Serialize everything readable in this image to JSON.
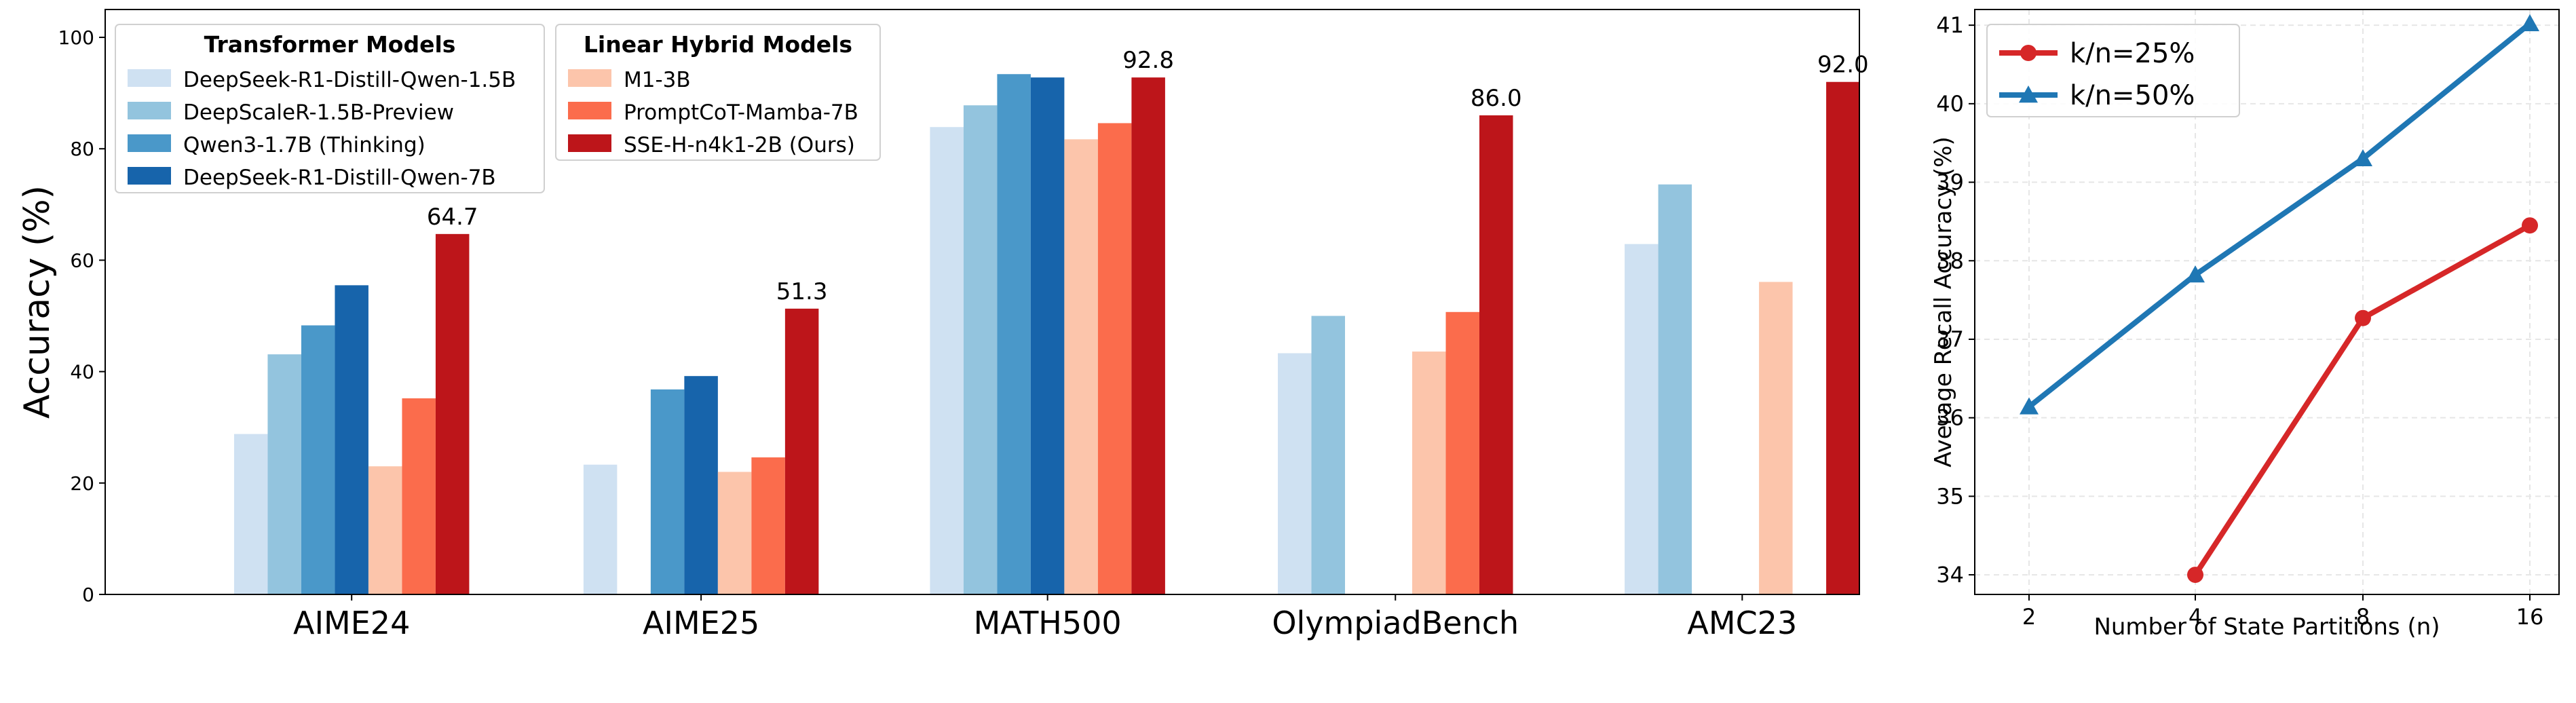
{
  "colors": {
    "deepseek_r1_qwen_1_5b": "#cfe1f2",
    "deepscaler": "#93c4de",
    "qwen3": "#4a98c9",
    "deepseek_r1_qwen_7b": "#1764ab",
    "m1": "#fcc5ab",
    "promptcot": "#fb6c4c",
    "sse": "#bd151a",
    "line_k25": "#d62728",
    "line_k50": "#1f77b4",
    "grid": "#e6e6e6"
  },
  "chart_data": [
    {
      "type": "bar",
      "xlabel": "",
      "ylabel": "Accuracy (%)",
      "ylim": [
        0,
        105
      ],
      "yticks": [
        "0",
        "20",
        "40",
        "60",
        "80",
        "100"
      ],
      "categories": [
        "AIME24",
        "AIME25",
        "MATH500",
        "OlympiadBench",
        "AMC23"
      ],
      "legend_groups": [
        {
          "title": "Transformer Models",
          "placement": "top-left",
          "entries": [
            "DeepSeek-R1-Distill-Qwen-1.5B",
            "DeepScaleR-1.5B-Preview",
            "Qwen3-1.7B (Thinking)",
            "DeepSeek-R1-Distill-Qwen-7B"
          ]
        },
        {
          "title": "Linear Hybrid Models",
          "placement": "top-left",
          "entries": [
            "M1-3B",
            "PromptCoT-Mamba-7B",
            "SSE-H-n4k1-2B (Ours)"
          ]
        }
      ],
      "series": [
        {
          "name": "DeepSeek-R1-Distill-Qwen-1.5B",
          "color": "#cfe1f2",
          "values": [
            28.8,
            23.3,
            83.9,
            43.3,
            62.9
          ]
        },
        {
          "name": "DeepScaleR-1.5B-Preview",
          "color": "#93c4de",
          "values": [
            43.1,
            null,
            87.8,
            50.0,
            73.6
          ]
        },
        {
          "name": "Qwen3-1.7B (Thinking)",
          "color": "#4a98c9",
          "values": [
            48.3,
            36.8,
            93.4,
            null,
            null
          ]
        },
        {
          "name": "DeepSeek-R1-Distill-Qwen-7B",
          "color": "#1764ab",
          "values": [
            55.5,
            39.2,
            92.8,
            null,
            null
          ]
        },
        {
          "name": "M1-3B",
          "color": "#fcc5ab",
          "values": [
            23.0,
            22.0,
            81.7,
            43.6,
            56.1
          ]
        },
        {
          "name": "PromptCoT-Mamba-7B",
          "color": "#fb6c4c",
          "values": [
            35.2,
            24.6,
            84.6,
            50.7,
            null
          ]
        },
        {
          "name": "SSE-H-n4k1-2B (Ours)",
          "color": "#bd151a",
          "values": [
            64.7,
            51.3,
            92.8,
            86.0,
            92.0
          ]
        }
      ],
      "data_labels": [
        "64.7",
        "51.3",
        "92.8",
        "86.0",
        "92.0"
      ]
    },
    {
      "type": "line",
      "xlabel": "Number of State Partitions (n)",
      "ylabel": "Average Recall Accuracy (%)",
      "x": [
        "2",
        "4",
        "8",
        "16"
      ],
      "ylim": [
        33.75,
        41.2
      ],
      "yticks": [
        "34",
        "35",
        "36",
        "37",
        "38",
        "39",
        "40",
        "41"
      ],
      "grid": true,
      "legend_placement": "top-left",
      "series": [
        {
          "name": "k/n=25%",
          "color": "#d62728",
          "marker": "circle",
          "values": [
            null,
            34.0,
            37.27,
            38.45
          ]
        },
        {
          "name": "k/n=50%",
          "color": "#1f77b4",
          "marker": "triangle",
          "values": [
            36.14,
            37.82,
            39.3,
            41.02
          ]
        }
      ]
    }
  ]
}
